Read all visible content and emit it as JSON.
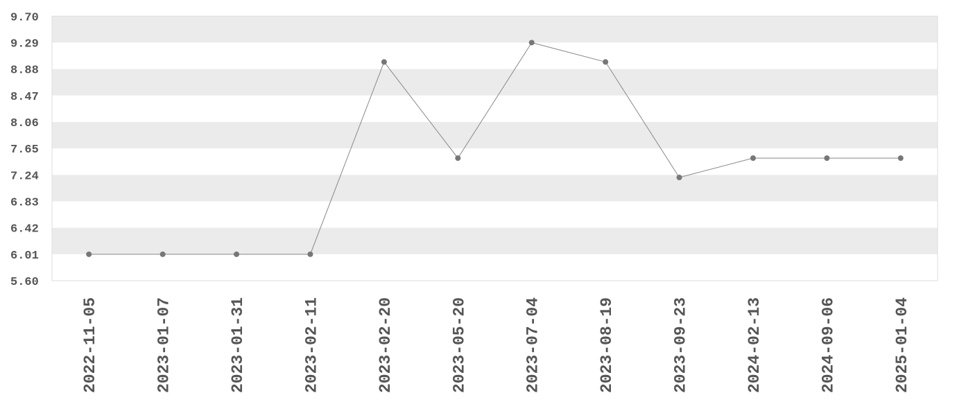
{
  "chart_data": {
    "type": "line",
    "title": "",
    "xlabel": "",
    "ylabel": "",
    "categories": [
      "2022-11-05",
      "2023-01-07",
      "2023-01-31",
      "2023-02-11",
      "2023-02-20",
      "2023-05-20",
      "2023-07-04",
      "2023-08-19",
      "2023-09-23",
      "2024-02-13",
      "2024-09-06",
      "2025-01-04"
    ],
    "values": [
      6.01,
      6.01,
      6.01,
      6.01,
      8.99,
      7.5,
      9.29,
      8.99,
      7.2,
      7.5,
      7.5,
      7.5
    ],
    "ylim": [
      5.6,
      9.7
    ],
    "yticks": [
      "9.70",
      "9.29",
      "8.88",
      "8.47",
      "8.06",
      "7.65",
      "7.24",
      "6.83",
      "6.42",
      "6.01",
      "5.60"
    ],
    "grid": "alternating horizontal bands",
    "legend": "none",
    "colors": {
      "line": "#888888",
      "marker": "#777777",
      "band": "#ebebeb",
      "border": "#dddddd",
      "text": "#555555"
    }
  }
}
